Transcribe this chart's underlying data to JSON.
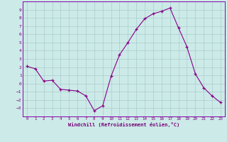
{
  "x": [
    0,
    1,
    2,
    3,
    4,
    5,
    6,
    7,
    8,
    9,
    10,
    11,
    12,
    13,
    14,
    15,
    16,
    17,
    18,
    19,
    20,
    21,
    22,
    23
  ],
  "y": [
    2.1,
    1.8,
    0.3,
    0.4,
    -0.7,
    -0.8,
    -0.9,
    -1.5,
    -3.3,
    -2.7,
    0.9,
    3.5,
    5.0,
    6.6,
    7.9,
    8.5,
    8.8,
    9.2,
    6.8,
    4.5,
    1.2,
    -0.5,
    -1.5,
    -2.3
  ],
  "line_color": "#880088",
  "marker": "+",
  "bg_color": "#cceae8",
  "grid_color": "#aacccc",
  "xlabel": "Windchill (Refroidissement éolien,°C)",
  "xlim": [
    -0.5,
    23.5
  ],
  "ylim": [
    -4.0,
    10.0
  ],
  "yticks": [
    -3,
    -2,
    -1,
    0,
    1,
    2,
    3,
    4,
    5,
    6,
    7,
    8,
    9
  ],
  "xticks": [
    0,
    1,
    2,
    3,
    4,
    5,
    6,
    7,
    8,
    9,
    10,
    11,
    12,
    13,
    14,
    15,
    16,
    17,
    18,
    19,
    20,
    21,
    22,
    23
  ],
  "text_color": "#770077",
  "spine_color": "#8800aa"
}
